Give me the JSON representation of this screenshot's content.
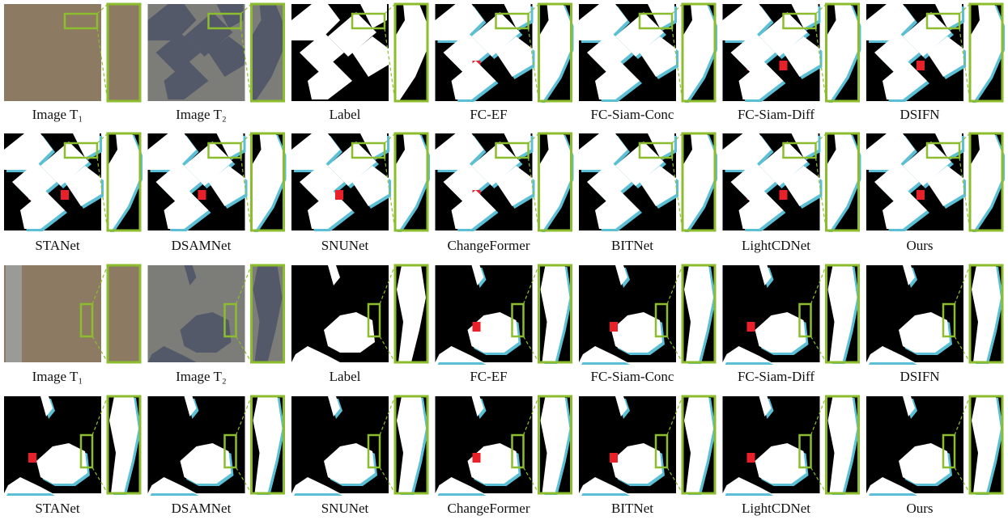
{
  "rows": [
    {
      "labels": [
        "Image T₁",
        "Image T₂",
        "Label",
        "FC-EF",
        "FC-Siam-Conc",
        "FC-Siam-Diff",
        "DSIFN"
      ]
    },
    {
      "labels": [
        "STANet",
        "DSAMNet",
        "SNUNet",
        "ChangeFormer",
        "BITNet",
        "LightCDNet",
        "Ours"
      ]
    },
    {
      "labels": [
        "Image T₁",
        "Image T₂",
        "Label",
        "FC-EF",
        "FC-Siam-Conc",
        "FC-Siam-Diff",
        "DSIFN"
      ]
    },
    {
      "labels": [
        "STANet",
        "DSAMNet",
        "SNUNet",
        "ChangeFormer",
        "BITNet",
        "LightCDNet",
        "Ours"
      ]
    }
  ]
}
